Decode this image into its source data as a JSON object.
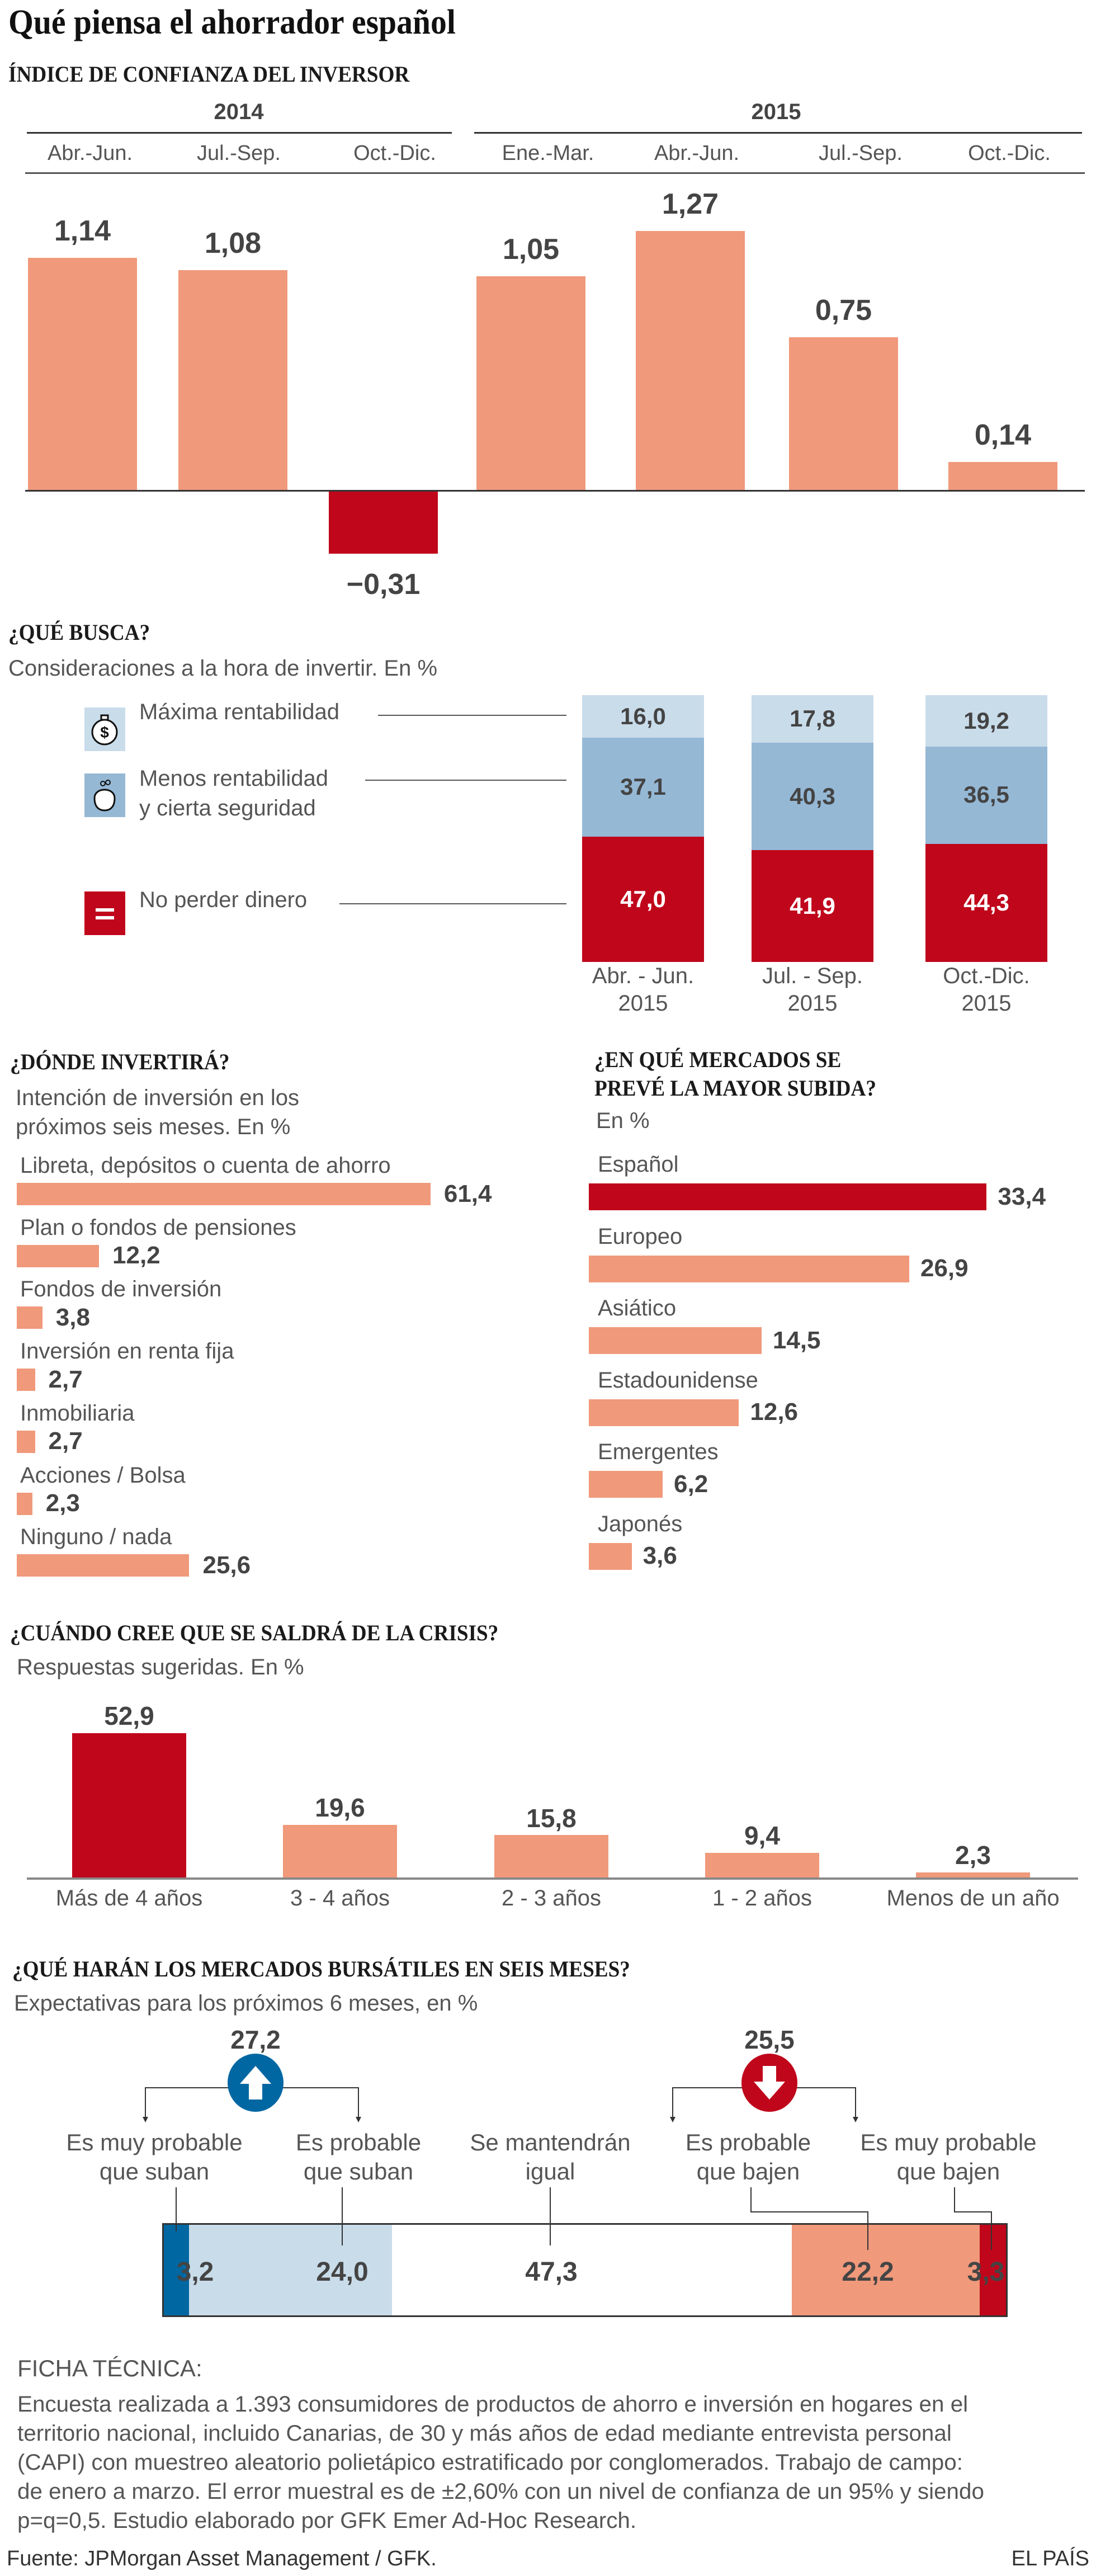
{
  "title": "Qué piensa el ahorrador español",
  "colors": {
    "salmon": "#f0997b",
    "red": "#c0061b",
    "light_blue": "#c9dcea",
    "mid_blue": "#95b8d5",
    "dark_blue": "#0067a2",
    "text": "#555555",
    "value_text": "#444444"
  },
  "chart_data": [
    {
      "type": "bar",
      "title": "ÍNDICE DE CONFIANZA DEL INVERSOR",
      "groups": [
        {
          "label": "2014",
          "categories": 3
        },
        {
          "label": "2015",
          "categories": 4
        }
      ],
      "categories": [
        "Abr.-Jun.",
        "Jul.-Sep.",
        "Oct.-Dic.",
        "Ene.-Mar.",
        "Abr.-Jun.",
        "Jul.-Sep.",
        "Oct.-Dic."
      ],
      "values": [
        1.14,
        1.08,
        -0.31,
        1.05,
        1.27,
        0.75,
        0.14
      ],
      "value_labels": [
        "1,14",
        "1,08",
        "−0,31",
        "1,05",
        "1,27",
        "0,75",
        "0,14"
      ],
      "grid": false
    },
    {
      "type": "bar",
      "stacked": true,
      "title": "¿QUÉ BUSCA?",
      "subtitle": "Consideraciones a la hora de invertir. En %",
      "categories": [
        [
          "Abr. - Jun.",
          "2015"
        ],
        [
          "Jul. - Sep.",
          "2015"
        ],
        [
          "Oct.-Dic.",
          "2015"
        ]
      ],
      "series": [
        {
          "name": "Máxima rentabilidad",
          "name_lines": [
            "Máxima rentabilidad"
          ],
          "icon": "money-bag-icon",
          "color": "#c9dcea",
          "values": [
            16.0,
            17.8,
            19.2
          ],
          "value_labels": [
            "16,0",
            "17,8",
            "19,2"
          ]
        },
        {
          "name": "Menos rentabilidad y cierta seguridad",
          "name_lines": [
            "Menos rentabilidad",
            "y cierta seguridad"
          ],
          "icon": "piggy-bank-icon",
          "color": "#95b8d5",
          "values": [
            37.1,
            40.3,
            36.5
          ],
          "value_labels": [
            "37,1",
            "40,3",
            "36,5"
          ]
        },
        {
          "name": "No perder dinero",
          "name_lines": [
            "No perder dinero"
          ],
          "icon": "equals-icon",
          "color": "#c0061b",
          "values": [
            47.0,
            41.9,
            44.3
          ],
          "value_labels": [
            "47,0",
            "41,9",
            "44,3"
          ]
        }
      ],
      "legend": "left"
    },
    {
      "type": "bar",
      "orientation": "horizontal",
      "title": "¿DÓNDE INVERTIRÁ?",
      "subtitle_lines": [
        "Intención de inversión en los",
        "próximos seis meses. En %"
      ],
      "categories": [
        "Libreta, depósitos o cuenta de ahorro",
        "Plan o fondos de pensiones",
        "Fondos de inversión",
        "Inversión en renta fija",
        "Inmobiliaria",
        "Acciones / Bolsa",
        "Ninguno / nada"
      ],
      "values": [
        61.4,
        12.2,
        3.8,
        2.7,
        2.7,
        2.3,
        25.6
      ],
      "value_labels": [
        "61,4",
        "12,2",
        "3,8",
        "2,7",
        "2,7",
        "2,3",
        "25,6"
      ]
    },
    {
      "type": "bar",
      "orientation": "horizontal",
      "title_lines": [
        "¿EN QUÉ MERCADOS SE",
        "PREVÉ LA MAYOR SUBIDA?"
      ],
      "subtitle": "En %",
      "categories": [
        "Español",
        "Europeo",
        "Asiático",
        "Estadounidense",
        "Emergentes",
        "Japonés"
      ],
      "values": [
        33.4,
        26.9,
        14.5,
        12.6,
        6.2,
        3.6
      ],
      "value_labels": [
        "33,4",
        "26,9",
        "14,5",
        "12,6",
        "6,2",
        "3,6"
      ],
      "highlight": "Español"
    },
    {
      "type": "bar",
      "title": "¿CUÁNDO CREE QUE SE SALDRÁ DE LA CRISIS?",
      "subtitle": "Respuestas sugeridas. En %",
      "categories": [
        "Más de 4 años",
        "3 - 4 años",
        "2 - 3 años",
        "1 - 2 años",
        "Menos de un año"
      ],
      "values": [
        52.9,
        19.6,
        15.8,
        9.4,
        2.3
      ],
      "value_labels": [
        "52,9",
        "19,6",
        "15,8",
        "9,4",
        "2,3"
      ],
      "highlight": "Más de 4 años"
    },
    {
      "type": "bar",
      "stacked": true,
      "orientation": "horizontal",
      "title": "¿QUÉ HARÁN LOS MERCADOS BURSÁTILES EN SEIS MESES?",
      "subtitle": "Expectativas para los próximos 6 meses, en %",
      "categories": [
        [
          "Es muy probable",
          "que suban"
        ],
        [
          "Es probable",
          "que suban"
        ],
        [
          "Se mantendrán",
          "igual"
        ],
        [
          "Es probable",
          "que bajen"
        ],
        [
          "Es muy probable",
          "que bajen"
        ]
      ],
      "values": [
        3.2,
        24.0,
        47.3,
        22.2,
        3.3
      ],
      "value_labels": [
        "3,2",
        "24,0",
        "47,3",
        "22,2",
        "3,3"
      ],
      "segment_colors": [
        "#0067a2",
        "#c9dcea",
        "#ffffff",
        "#f0997b",
        "#c0061b"
      ],
      "totals": [
        {
          "label": "27,2",
          "value": 27.2,
          "icon": "arrow-up-icon",
          "color": "#0067a2"
        },
        {
          "label": "25,5",
          "value": 25.5,
          "icon": "arrow-down-icon",
          "color": "#c0061b"
        }
      ]
    }
  ],
  "ficha": {
    "heading": "FICHA TÉCNICA:",
    "lines": [
      "Encuesta realizada a 1.393 consumidores de productos de ahorro e inversión en hogares en el",
      "territorio nacional, incluido Canarias, de 30 y más años de edad mediante entrevista personal",
      "(CAPI) con muestreo aleatorio polietápico estratificado por conglomerados. Trabajo de campo:",
      "de enero a marzo. El error muestral es de  ±2,60% con un nivel de confianza de un 95% y siendo",
      "p=q=0,5.  Estudio elaborado por GFK Emer Ad-Hoc Research."
    ]
  },
  "source": "Fuente: JPMorgan Asset Management / GFK.",
  "brand": "EL PAÍS"
}
